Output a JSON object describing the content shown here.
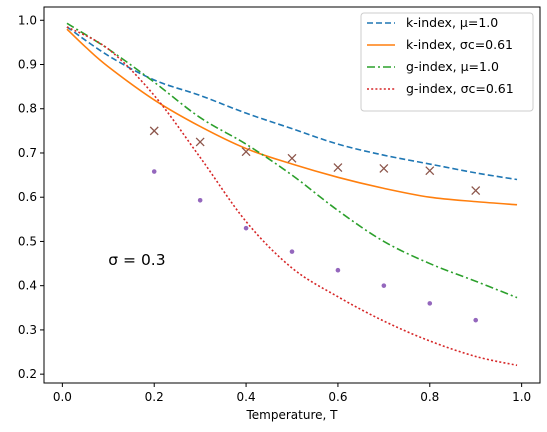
{
  "chart_data": {
    "type": "line",
    "xlabel": "Temperature, T",
    "ylabel": "",
    "xlim": [
      -0.04,
      1.04
    ],
    "ylim": [
      0.18,
      1.03
    ],
    "xticks": [
      "0.0",
      "0.2",
      "0.4",
      "0.6",
      "0.8",
      "1.0"
    ],
    "yticks": [
      "0.2",
      "0.3",
      "0.4",
      "0.5",
      "0.6",
      "0.7",
      "0.8",
      "0.9",
      "1.0"
    ],
    "legend_position": "top-right",
    "annotation": {
      "text": "σ = 0.3",
      "x": 0.1,
      "y": 0.46
    },
    "series": [
      {
        "name": "k-index, μ=1.0",
        "style": "dashed",
        "color": "#1f77b4",
        "x": [
          0.01,
          0.1,
          0.2,
          0.3,
          0.4,
          0.5,
          0.6,
          0.7,
          0.8,
          0.9,
          0.99
        ],
        "y": [
          0.985,
          0.92,
          0.865,
          0.83,
          0.79,
          0.755,
          0.72,
          0.695,
          0.675,
          0.655,
          0.64
        ]
      },
      {
        "name": "k-index, σc=0.61",
        "style": "solid",
        "color": "#ff7f0e",
        "x": [
          0.01,
          0.05,
          0.1,
          0.2,
          0.3,
          0.4,
          0.5,
          0.6,
          0.7,
          0.8,
          0.9,
          0.99
        ],
        "y": [
          0.98,
          0.94,
          0.895,
          0.82,
          0.76,
          0.71,
          0.675,
          0.645,
          0.62,
          0.6,
          0.59,
          0.583
        ]
      },
      {
        "name": "g-index, μ=1.0",
        "style": "dashdot",
        "color": "#2ca02c",
        "x": [
          0.01,
          0.1,
          0.2,
          0.3,
          0.4,
          0.5,
          0.6,
          0.7,
          0.8,
          0.9,
          0.99
        ],
        "y": [
          0.993,
          0.935,
          0.86,
          0.78,
          0.72,
          0.65,
          0.57,
          0.5,
          0.45,
          0.41,
          0.373
        ]
      },
      {
        "name": "g-index, σc=0.61",
        "style": "dotted",
        "color": "#d62728",
        "x": [
          0.01,
          0.1,
          0.2,
          0.3,
          0.4,
          0.5,
          0.6,
          0.7,
          0.8,
          0.9,
          0.99
        ],
        "y": [
          0.985,
          0.935,
          0.83,
          0.69,
          0.545,
          0.44,
          0.375,
          0.32,
          0.275,
          0.24,
          0.22
        ]
      },
      {
        "style": "markers-x",
        "color": "#8c564b",
        "x": [
          0.2,
          0.3,
          0.4,
          0.5,
          0.6,
          0.7,
          0.8,
          0.9
        ],
        "y": [
          0.75,
          0.725,
          0.703,
          0.688,
          0.667,
          0.665,
          0.66,
          0.615
        ]
      },
      {
        "style": "markers-dot",
        "color": "#9467bd",
        "x": [
          0.2,
          0.3,
          0.4,
          0.5,
          0.6,
          0.7,
          0.8,
          0.9
        ],
        "y": [
          0.658,
          0.593,
          0.53,
          0.477,
          0.435,
          0.4,
          0.36,
          0.322
        ]
      }
    ]
  }
}
